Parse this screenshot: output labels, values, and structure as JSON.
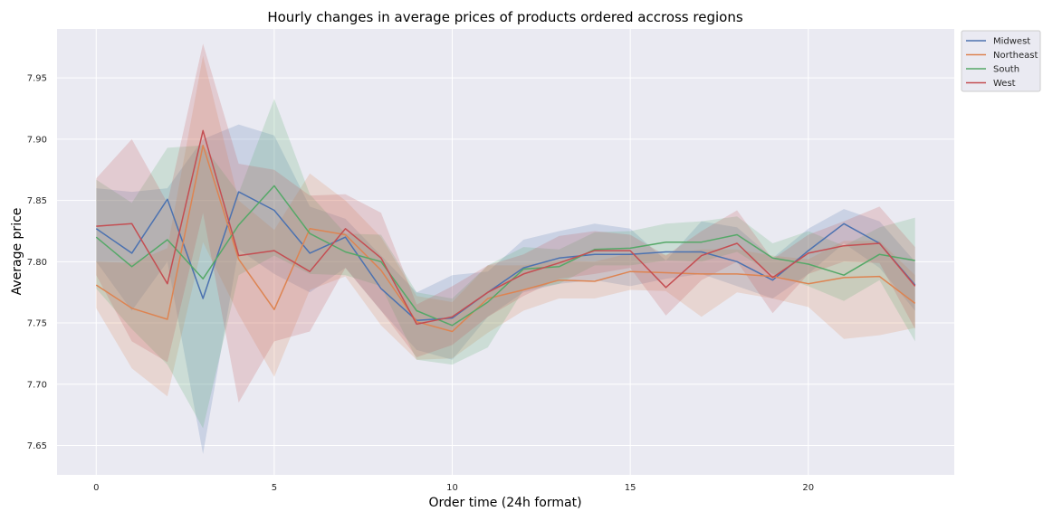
{
  "chart_data": {
    "type": "line",
    "title": "Hourly changes in average prices of products ordered accross regions",
    "xlabel": "Order time (24h format)",
    "ylabel": "Average price",
    "xlim": [
      -1.1,
      24.1
    ],
    "ylim": [
      7.626,
      7.99
    ],
    "xticks": [
      0,
      5,
      10,
      15,
      20
    ],
    "yticks": [
      7.65,
      7.7,
      7.75,
      7.8,
      7.85,
      7.9,
      7.95
    ],
    "ytick_format": 2,
    "grid": true,
    "legend_position": "outside-top-right",
    "confidence_bands": true,
    "x": [
      0,
      1,
      2,
      3,
      4,
      5,
      6,
      7,
      8,
      9,
      10,
      11,
      12,
      13,
      14,
      15,
      16,
      17,
      18,
      19,
      20,
      21,
      22,
      23
    ],
    "series": [
      {
        "name": "Midwest",
        "color": "#4c72b0",
        "values": [
          7.827,
          7.807,
          7.851,
          7.77,
          7.857,
          7.842,
          7.807,
          7.82,
          7.778,
          7.752,
          7.754,
          7.775,
          7.795,
          7.803,
          7.806,
          7.806,
          7.808,
          7.808,
          7.8,
          7.785,
          7.809,
          7.831,
          7.815,
          7.781
        ],
        "lower": [
          7.8,
          7.76,
          7.8,
          7.643,
          7.81,
          7.79,
          7.775,
          7.795,
          7.76,
          7.728,
          7.72,
          7.755,
          7.775,
          7.782,
          7.785,
          7.78,
          7.786,
          7.79,
          7.78,
          7.77,
          7.79,
          7.815,
          7.795,
          7.76
        ],
        "upper": [
          7.86,
          7.857,
          7.86,
          7.9,
          7.912,
          7.903,
          7.845,
          7.835,
          7.805,
          7.775,
          7.789,
          7.792,
          7.818,
          7.825,
          7.831,
          7.827,
          7.801,
          7.833,
          7.828,
          7.803,
          7.827,
          7.843,
          7.833,
          7.8
        ]
      },
      {
        "name": "Northeast",
        "color": "#dd8452",
        "values": [
          7.781,
          7.762,
          7.753,
          7.895,
          7.802,
          7.761,
          7.827,
          7.822,
          7.793,
          7.751,
          7.743,
          7.77,
          7.777,
          7.785,
          7.784,
          7.792,
          7.791,
          7.79,
          7.79,
          7.788,
          7.782,
          7.787,
          7.788,
          7.766
        ],
        "lower": [
          7.762,
          7.713,
          7.69,
          7.816,
          7.757,
          7.706,
          7.777,
          7.788,
          7.748,
          7.72,
          7.721,
          7.742,
          7.76,
          7.77,
          7.77,
          7.777,
          7.776,
          7.755,
          7.775,
          7.77,
          7.763,
          7.737,
          7.74,
          7.746
        ],
        "upper": [
          7.8,
          7.799,
          7.811,
          7.968,
          7.85,
          7.826,
          7.872,
          7.85,
          7.82,
          7.772,
          7.767,
          7.797,
          7.797,
          7.801,
          7.8,
          7.807,
          7.806,
          7.81,
          7.81,
          7.805,
          7.802,
          7.817,
          7.817,
          7.789
        ]
      },
      {
        "name": "South",
        "color": "#55a868",
        "values": [
          7.82,
          7.796,
          7.818,
          7.786,
          7.83,
          7.862,
          7.823,
          7.808,
          7.8,
          7.76,
          7.748,
          7.767,
          7.794,
          7.796,
          7.81,
          7.811,
          7.816,
          7.816,
          7.822,
          7.803,
          7.798,
          7.789,
          7.806,
          7.801
        ],
        "lower": [
          7.778,
          7.745,
          7.716,
          7.664,
          7.789,
          7.805,
          7.79,
          7.789,
          7.78,
          7.72,
          7.716,
          7.73,
          7.777,
          7.782,
          7.797,
          7.797,
          7.801,
          7.8,
          7.808,
          7.79,
          7.78,
          7.768,
          7.785,
          7.735
        ],
        "upper": [
          7.867,
          7.848,
          7.893,
          7.895,
          7.856,
          7.933,
          7.855,
          7.823,
          7.822,
          7.775,
          7.77,
          7.797,
          7.812,
          7.81,
          7.824,
          7.825,
          7.831,
          7.833,
          7.837,
          7.815,
          7.825,
          7.813,
          7.828,
          7.836
        ]
      },
      {
        "name": "West",
        "color": "#c44e52",
        "values": [
          7.829,
          7.831,
          7.782,
          7.907,
          7.805,
          7.809,
          7.792,
          7.827,
          7.803,
          7.749,
          7.755,
          7.775,
          7.79,
          7.799,
          7.809,
          7.809,
          7.779,
          7.805,
          7.815,
          7.787,
          7.807,
          7.813,
          7.815,
          7.78
        ],
        "lower": [
          7.789,
          7.735,
          7.718,
          7.84,
          7.685,
          7.735,
          7.743,
          7.795,
          7.76,
          7.722,
          7.732,
          7.755,
          7.772,
          7.786,
          7.79,
          7.795,
          7.756,
          7.785,
          7.8,
          7.758,
          7.79,
          7.8,
          7.799,
          7.745
        ],
        "upper": [
          7.868,
          7.9,
          7.848,
          7.978,
          7.88,
          7.875,
          7.854,
          7.855,
          7.84,
          7.765,
          7.78,
          7.797,
          7.806,
          7.821,
          7.825,
          7.822,
          7.805,
          7.825,
          7.842,
          7.802,
          7.822,
          7.833,
          7.845,
          7.812
        ]
      }
    ]
  }
}
